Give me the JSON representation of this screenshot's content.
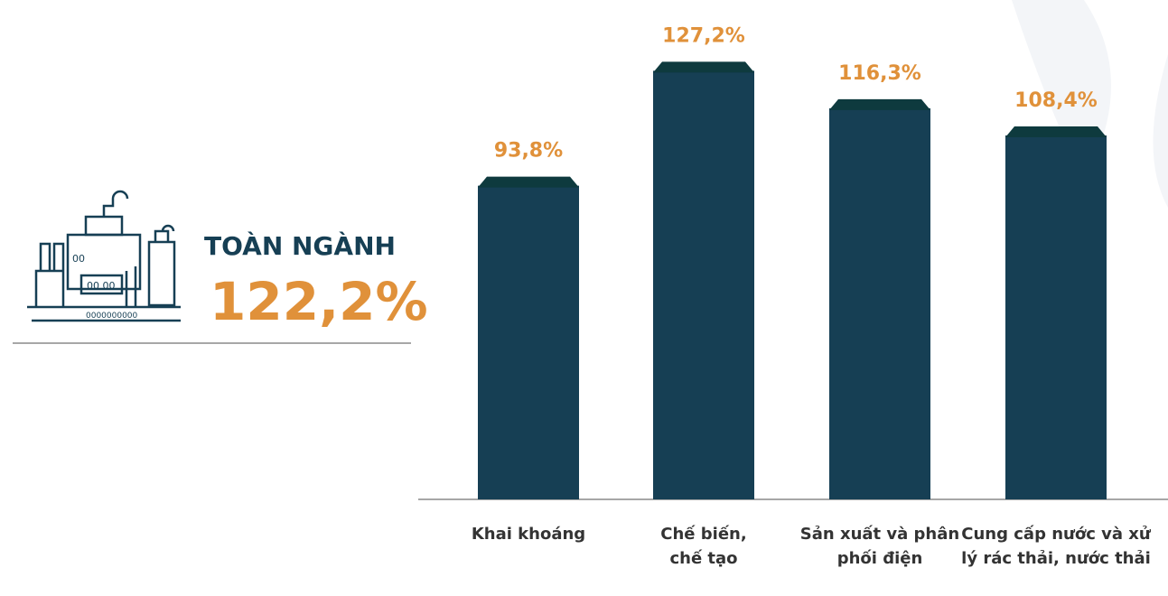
{
  "chart_data": {
    "type": "bar",
    "summary": {
      "label": "TOÀN NGÀNH",
      "value_label": "122,2%"
    },
    "categories": [
      "Khai khoáng",
      "Chế biến, chế tạo",
      "Sản xuất và phân phối điện",
      "Cung cấp nước và xử lý rác thải, nước thải"
    ],
    "values": [
      93.8,
      127.2,
      116.3,
      108.4
    ],
    "value_labels": [
      "93,8%",
      "127,2%",
      "116,3%",
      "108,4%"
    ],
    "color": "#163f54",
    "label_color": "#e0913a"
  }
}
